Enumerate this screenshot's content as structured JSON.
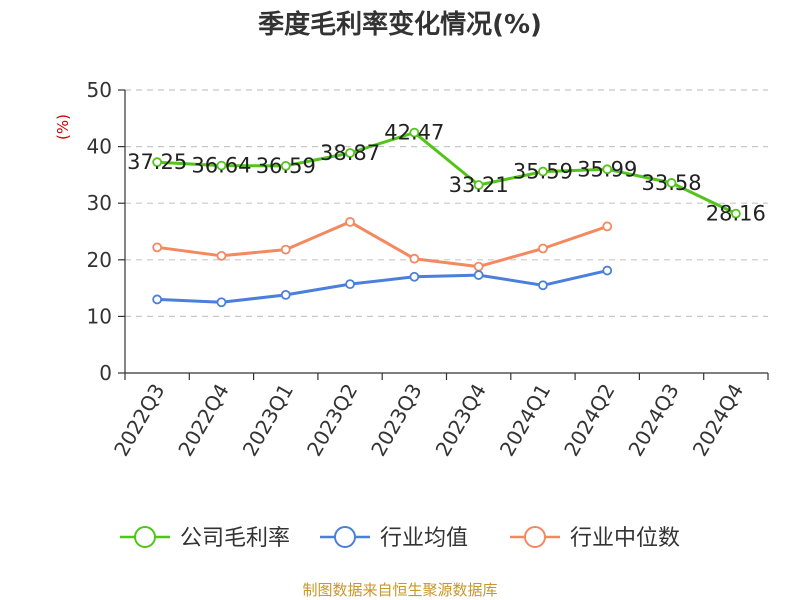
{
  "source_text": "制图数据来自恒生聚源数据库",
  "colors": {
    "公司毛利率": "#52c41a",
    "行业均值": "#4a7fdb",
    "行业中位数": "#f4895f",
    "grid": "#c8c8c8",
    "axis": "#333333",
    "ylabel": "#cc0000",
    "source": "#c8962a"
  },
  "chart_data": {
    "type": "line",
    "title": "季度毛利率变化情况(%)",
    "ylabel": "(%)",
    "xlabel": "",
    "ylim": [
      0,
      50
    ],
    "yticks": [
      0,
      10,
      20,
      30,
      40,
      50
    ],
    "grid": true,
    "legend_position": "bottom",
    "categories": [
      "2022Q3",
      "2022Q4",
      "2023Q1",
      "2023Q2",
      "2023Q3",
      "2023Q4",
      "2024Q1",
      "2024Q2",
      "2024Q3",
      "2024Q4"
    ],
    "series": [
      {
        "name": "公司毛利率",
        "values": [
          37.25,
          36.64,
          36.59,
          38.87,
          42.47,
          33.21,
          35.59,
          35.99,
          33.58,
          28.16
        ],
        "labels": [
          "37.25",
          "36.64",
          "36.59",
          "38.87",
          "42.47",
          "33.21",
          "35.59",
          "35.99",
          "33.58",
          "28.16"
        ],
        "show_labels": true
      },
      {
        "name": "行业均值",
        "values": [
          13.0,
          12.5,
          13.8,
          15.7,
          17.0,
          17.3,
          15.5,
          18.1,
          null,
          null
        ],
        "show_labels": false
      },
      {
        "name": "行业中位数",
        "values": [
          22.2,
          20.7,
          21.8,
          26.7,
          20.2,
          18.8,
          22.0,
          25.9,
          null,
          null
        ],
        "show_labels": false
      }
    ]
  }
}
